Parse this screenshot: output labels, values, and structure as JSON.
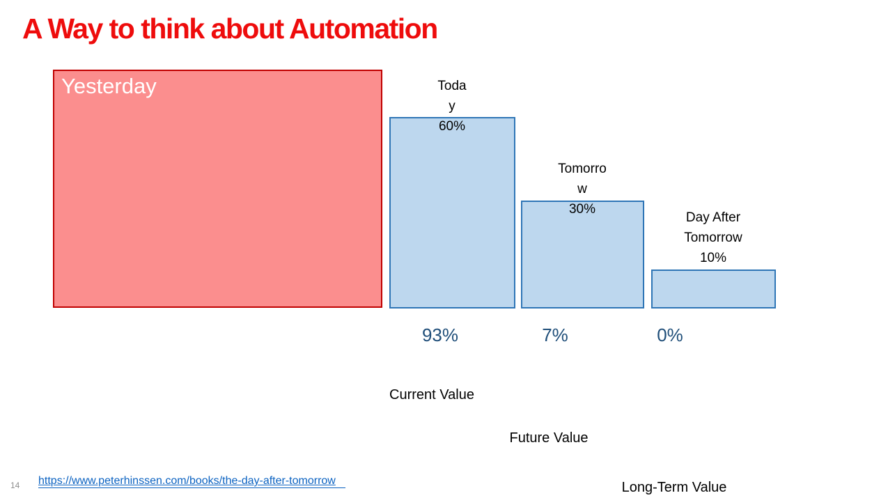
{
  "title": "A Way to think about Automation",
  "yesterday": {
    "label": "Yesterday"
  },
  "bars": [
    {
      "id": "today",
      "lines": [
        "Toda",
        "y",
        "60%"
      ],
      "percent_below": "93%"
    },
    {
      "id": "tomorrow",
      "lines": [
        "Tomorro",
        "w",
        "30%"
      ],
      "percent_below": "7%"
    },
    {
      "id": "day-after-tomorrow",
      "lines": [
        "Day After",
        "Tomorrow",
        "10%"
      ],
      "percent_below": "0%"
    }
  ],
  "value_labels": [
    {
      "text": "Current Value"
    },
    {
      "text": "Future Value"
    },
    {
      "text": "Long-Term Value"
    }
  ],
  "footer": {
    "page_number": "14",
    "link_text": "https://www.peterhinssen.com/books/the-day-after-tomorrow"
  },
  "colors": {
    "title_red": "#ee0c0c",
    "yesterday_fill": "#fb8e8e",
    "yesterday_border": "#c00000",
    "bar_fill": "#bdd7ee",
    "bar_border": "#2e75b6",
    "percent_text": "#1f4e79",
    "link_blue": "#0b62c1",
    "page_number_gray": "#8e8e8e"
  },
  "chart_data": {
    "type": "bar",
    "title": "A Way to think about Automation",
    "categories": [
      "Yesterday",
      "Today",
      "Tomorrow",
      "Day After Tomorrow"
    ],
    "series": [
      {
        "name": "top_percent_label",
        "values": [
          null,
          60,
          30,
          10
        ],
        "unit": "%"
      },
      {
        "name": "bottom_percent_label",
        "values": [
          null,
          93,
          7,
          0
        ],
        "unit": "%"
      }
    ],
    "annotations": [
      "Current Value",
      "Future Value",
      "Long-Term Value"
    ],
    "legend": false,
    "grid": false,
    "axes": "none"
  }
}
